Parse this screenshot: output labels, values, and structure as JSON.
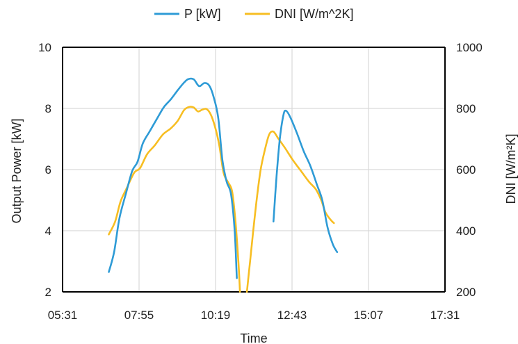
{
  "chart_data": {
    "type": "line",
    "xlabel": "Time",
    "ylabel": "Output Power [kW]",
    "y2label": "DNI [W/m²K]",
    "x_ticks": [
      "05:31",
      "07:55",
      "10:19",
      "12:43",
      "15:07",
      "17:31"
    ],
    "x_range_minutes": [
      331,
      1051
    ],
    "ylim": [
      2,
      10
    ],
    "y_ticks": [
      "2",
      "4",
      "6",
      "8",
      "10"
    ],
    "y2lim": [
      200,
      1000
    ],
    "y2_ticks": [
      "200",
      "400",
      "600",
      "800",
      "1000"
    ],
    "grid": true,
    "legend_position": "top",
    "series": [
      {
        "name": "P [kW]",
        "axis": "left",
        "color": "#2E9BD6",
        "points": [
          [
            418,
            2.65
          ],
          [
            428,
            3.3
          ],
          [
            438,
            4.4
          ],
          [
            450,
            5.2
          ],
          [
            462,
            5.95
          ],
          [
            472,
            6.25
          ],
          [
            482,
            6.85
          ],
          [
            495,
            7.25
          ],
          [
            510,
            7.7
          ],
          [
            522,
            8.05
          ],
          [
            535,
            8.3
          ],
          [
            548,
            8.6
          ],
          [
            560,
            8.85
          ],
          [
            568,
            8.96
          ],
          [
            578,
            8.95
          ],
          [
            588,
            8.73
          ],
          [
            598,
            8.83
          ],
          [
            607,
            8.75
          ],
          [
            615,
            8.4
          ],
          [
            624,
            7.7
          ],
          [
            632,
            6.3
          ],
          [
            640,
            5.6
          ],
          [
            648,
            5.2
          ],
          [
            655,
            4.0
          ],
          [
            659,
            2.45
          ],
          null,
          [
            728,
            4.3
          ],
          [
            734,
            5.8
          ],
          [
            740,
            7.0
          ],
          [
            747,
            7.8
          ],
          [
            752,
            7.92
          ],
          [
            760,
            7.7
          ],
          [
            772,
            7.2
          ],
          [
            785,
            6.6
          ],
          [
            798,
            6.1
          ],
          [
            810,
            5.5
          ],
          [
            820,
            5.0
          ],
          [
            830,
            4.1
          ],
          [
            840,
            3.55
          ],
          [
            848,
            3.3
          ]
        ]
      },
      {
        "name": "DNI [W/m^2K]",
        "axis": "right",
        "color": "#F7BE22",
        "points": [
          [
            418,
            388
          ],
          [
            430,
            430
          ],
          [
            440,
            495
          ],
          [
            452,
            540
          ],
          [
            466,
            590
          ],
          [
            477,
            605
          ],
          [
            490,
            650
          ],
          [
            505,
            680
          ],
          [
            520,
            715
          ],
          [
            535,
            735
          ],
          [
            548,
            760
          ],
          [
            560,
            795
          ],
          [
            570,
            805
          ],
          [
            578,
            803
          ],
          [
            586,
            790
          ],
          [
            594,
            796
          ],
          [
            602,
            798
          ],
          [
            610,
            780
          ],
          [
            618,
            740
          ],
          [
            626,
            680
          ],
          [
            634,
            590
          ],
          [
            642,
            560
          ],
          [
            650,
            530
          ],
          [
            656,
            440
          ],
          [
            662,
            300
          ],
          [
            665,
            200
          ],
          null,
          [
            678,
            200
          ],
          [
            684,
            300
          ],
          [
            690,
            400
          ],
          [
            697,
            510
          ],
          [
            704,
            600
          ],
          [
            712,
            665
          ],
          [
            720,
            715
          ],
          [
            728,
            724
          ],
          [
            737,
            702
          ],
          [
            750,
            670
          ],
          [
            765,
            630
          ],
          [
            780,
            595
          ],
          [
            795,
            560
          ],
          [
            808,
            535
          ],
          [
            818,
            500
          ],
          [
            826,
            460
          ],
          [
            836,
            435
          ],
          [
            842,
            425
          ]
        ]
      }
    ]
  }
}
